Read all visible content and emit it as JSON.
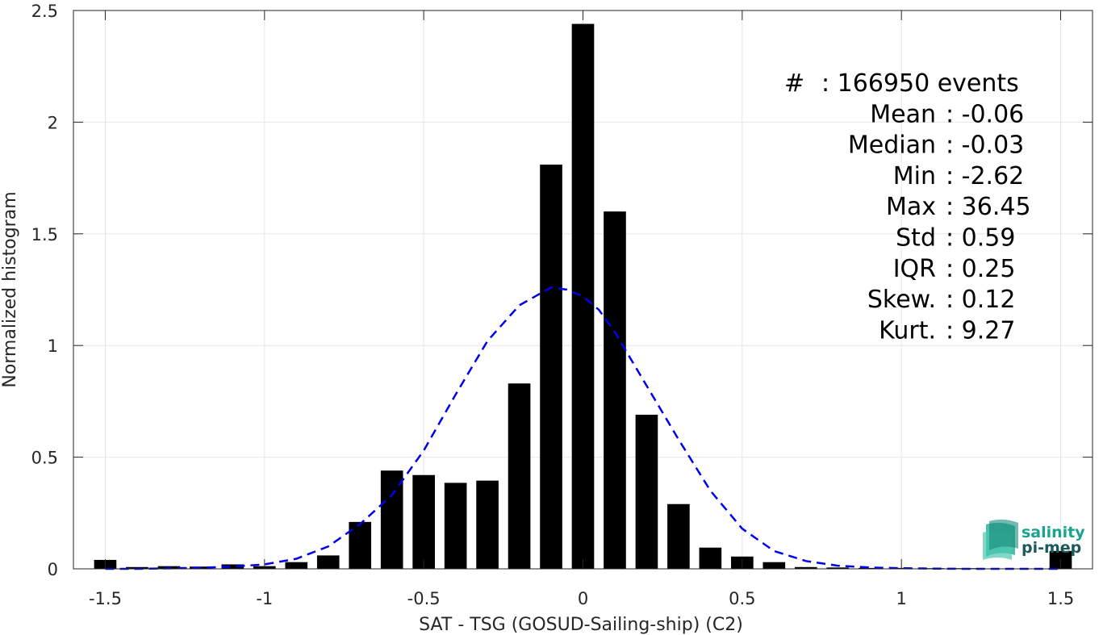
{
  "chart_data": {
    "type": "bar",
    "xlabel": "SAT - TSG (GOSUD-Sailing-ship) (C2)",
    "ylabel": "Normalized histogram",
    "xlim": [
      -1.6,
      1.6
    ],
    "ylim": [
      0,
      2.5
    ],
    "xticks": [
      -1.5,
      -1,
      -0.5,
      0,
      0.5,
      1,
      1.5
    ],
    "xtick_labels": [
      "-1.5",
      "-1",
      "-0.5",
      "0",
      "0.5",
      "1",
      "1.5"
    ],
    "yticks": [
      0,
      0.5,
      1,
      1.5,
      2,
      2.5
    ],
    "ytick_labels": [
      "0",
      "0.5",
      "1",
      "1.5",
      "2",
      "2.5"
    ],
    "grid": true,
    "bar_color": "#000000",
    "bins": {
      "centers": [
        -1.5,
        -1.4,
        -1.3,
        -1.2,
        -1.1,
        -1.0,
        -0.9,
        -0.8,
        -0.7,
        -0.6,
        -0.5,
        -0.4,
        -0.3,
        -0.2,
        -0.1,
        0.0,
        0.1,
        0.2,
        0.3,
        0.4,
        0.5,
        0.6,
        0.7,
        0.8,
        0.9,
        1.0,
        1.1,
        1.2,
        1.3,
        1.4,
        1.5
      ],
      "values": [
        0.04,
        0.008,
        0.012,
        0.01,
        0.02,
        0.012,
        0.03,
        0.06,
        0.21,
        0.44,
        0.42,
        0.385,
        0.395,
        0.83,
        1.81,
        2.44,
        1.6,
        0.69,
        0.29,
        0.095,
        0.055,
        0.03,
        0.008,
        0.006,
        0.004,
        0.004,
        0.003,
        0.003,
        0.002,
        0.002,
        0.08
      ]
    },
    "fit_curve": {
      "style": "dashed",
      "color": "#0000ee",
      "x": [
        -1.5,
        -1.4,
        -1.3,
        -1.2,
        -1.1,
        -1.0,
        -0.9,
        -0.8,
        -0.7,
        -0.6,
        -0.5,
        -0.4,
        -0.3,
        -0.2,
        -0.15,
        -0.1,
        -0.05,
        0.0,
        0.05,
        0.1,
        0.2,
        0.3,
        0.4,
        0.5,
        0.6,
        0.7,
        0.8,
        0.9,
        1.0,
        1.1,
        1.2,
        1.3,
        1.4,
        1.5
      ],
      "y": [
        0.0,
        0.0,
        0.002,
        0.005,
        0.01,
        0.02,
        0.045,
        0.1,
        0.2,
        0.33,
        0.53,
        0.78,
        1.02,
        1.18,
        1.22,
        1.26,
        1.25,
        1.22,
        1.16,
        1.06,
        0.82,
        0.58,
        0.35,
        0.18,
        0.08,
        0.035,
        0.014,
        0.006,
        0.003,
        0.001,
        0.0,
        0.0,
        0.0,
        0.0
      ]
    },
    "stats": [
      {
        "label": "#",
        "value": ": 166950 events"
      },
      {
        "label": "Mean",
        "value": ": -0.06"
      },
      {
        "label": "Median",
        "value": ": -0.03"
      },
      {
        "label": "Min",
        "value": ": -2.62"
      },
      {
        "label": "Max",
        "value": ": 36.45"
      },
      {
        "label": "Std",
        "value": ": 0.59"
      },
      {
        "label": "IQR",
        "value": ": 0.25"
      },
      {
        "label": "Skew.",
        "value": ": 0.12"
      },
      {
        "label": "Kurt.",
        "value": ": 9.27"
      }
    ]
  },
  "logo": {
    "line1": "salinity",
    "line2": "pi-mep",
    "color_top": "#1aa38f",
    "color_bottom": "#1a5a5a"
  }
}
